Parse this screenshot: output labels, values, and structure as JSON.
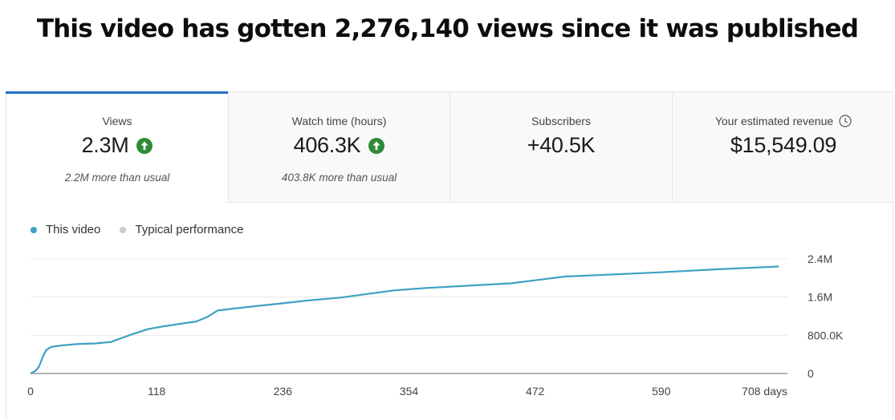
{
  "headline": "This video has gotten 2,276,140 views since it was published",
  "tabs": [
    {
      "label": "Views",
      "value": "2.3M",
      "sub": "2.2M more than usual",
      "trend": "up"
    },
    {
      "label": "Watch time (hours)",
      "value": "406.3K",
      "sub": "403.8K more than usual",
      "trend": "up"
    },
    {
      "label": "Subscribers",
      "value": "+40.5K",
      "sub": ""
    },
    {
      "label": "Your estimated revenue",
      "value": "$15,549.09",
      "sub": "",
      "icon": "clock-icon"
    }
  ],
  "legend": {
    "this_video": "This video",
    "typical": "Typical performance"
  },
  "colors": {
    "accent": "#1f6fc5",
    "series": "#3fa0c4",
    "typical": "#cccccc",
    "trend_up": "#2e8b37"
  },
  "chart_data": {
    "type": "line",
    "x_tick_labels": [
      "0",
      "118",
      "236",
      "354",
      "472",
      "590",
      "708 days"
    ],
    "x_ticks": [
      0,
      118,
      236,
      354,
      472,
      590,
      708
    ],
    "y_tick_labels": [
      "0",
      "800.0K",
      "1.6M",
      "2.4M"
    ],
    "y_ticks": [
      0,
      800000,
      1600000,
      2400000
    ],
    "xlim": [
      0,
      708
    ],
    "ylim": [
      0,
      2400000
    ],
    "grid": true,
    "legend_position": "top-left",
    "series": [
      {
        "name": "This video",
        "x": [
          0,
          5,
          8,
          12,
          15,
          20,
          30,
          45,
          60,
          75,
          85,
          95,
          110,
          125,
          140,
          155,
          165,
          175,
          190,
          210,
          236,
          260,
          290,
          310,
          340,
          370,
          410,
          450,
          475,
          500,
          540,
          590,
          640,
          680,
          700
        ],
        "y": [
          0,
          60000,
          150000,
          380000,
          500000,
          560000,
          590000,
          620000,
          630000,
          660000,
          740000,
          820000,
          930000,
          990000,
          1040000,
          1090000,
          1180000,
          1320000,
          1360000,
          1410000,
          1470000,
          1530000,
          1590000,
          1650000,
          1740000,
          1790000,
          1840000,
          1890000,
          1960000,
          2030000,
          2070000,
          2120000,
          2180000,
          2220000,
          2240000
        ]
      }
    ]
  }
}
